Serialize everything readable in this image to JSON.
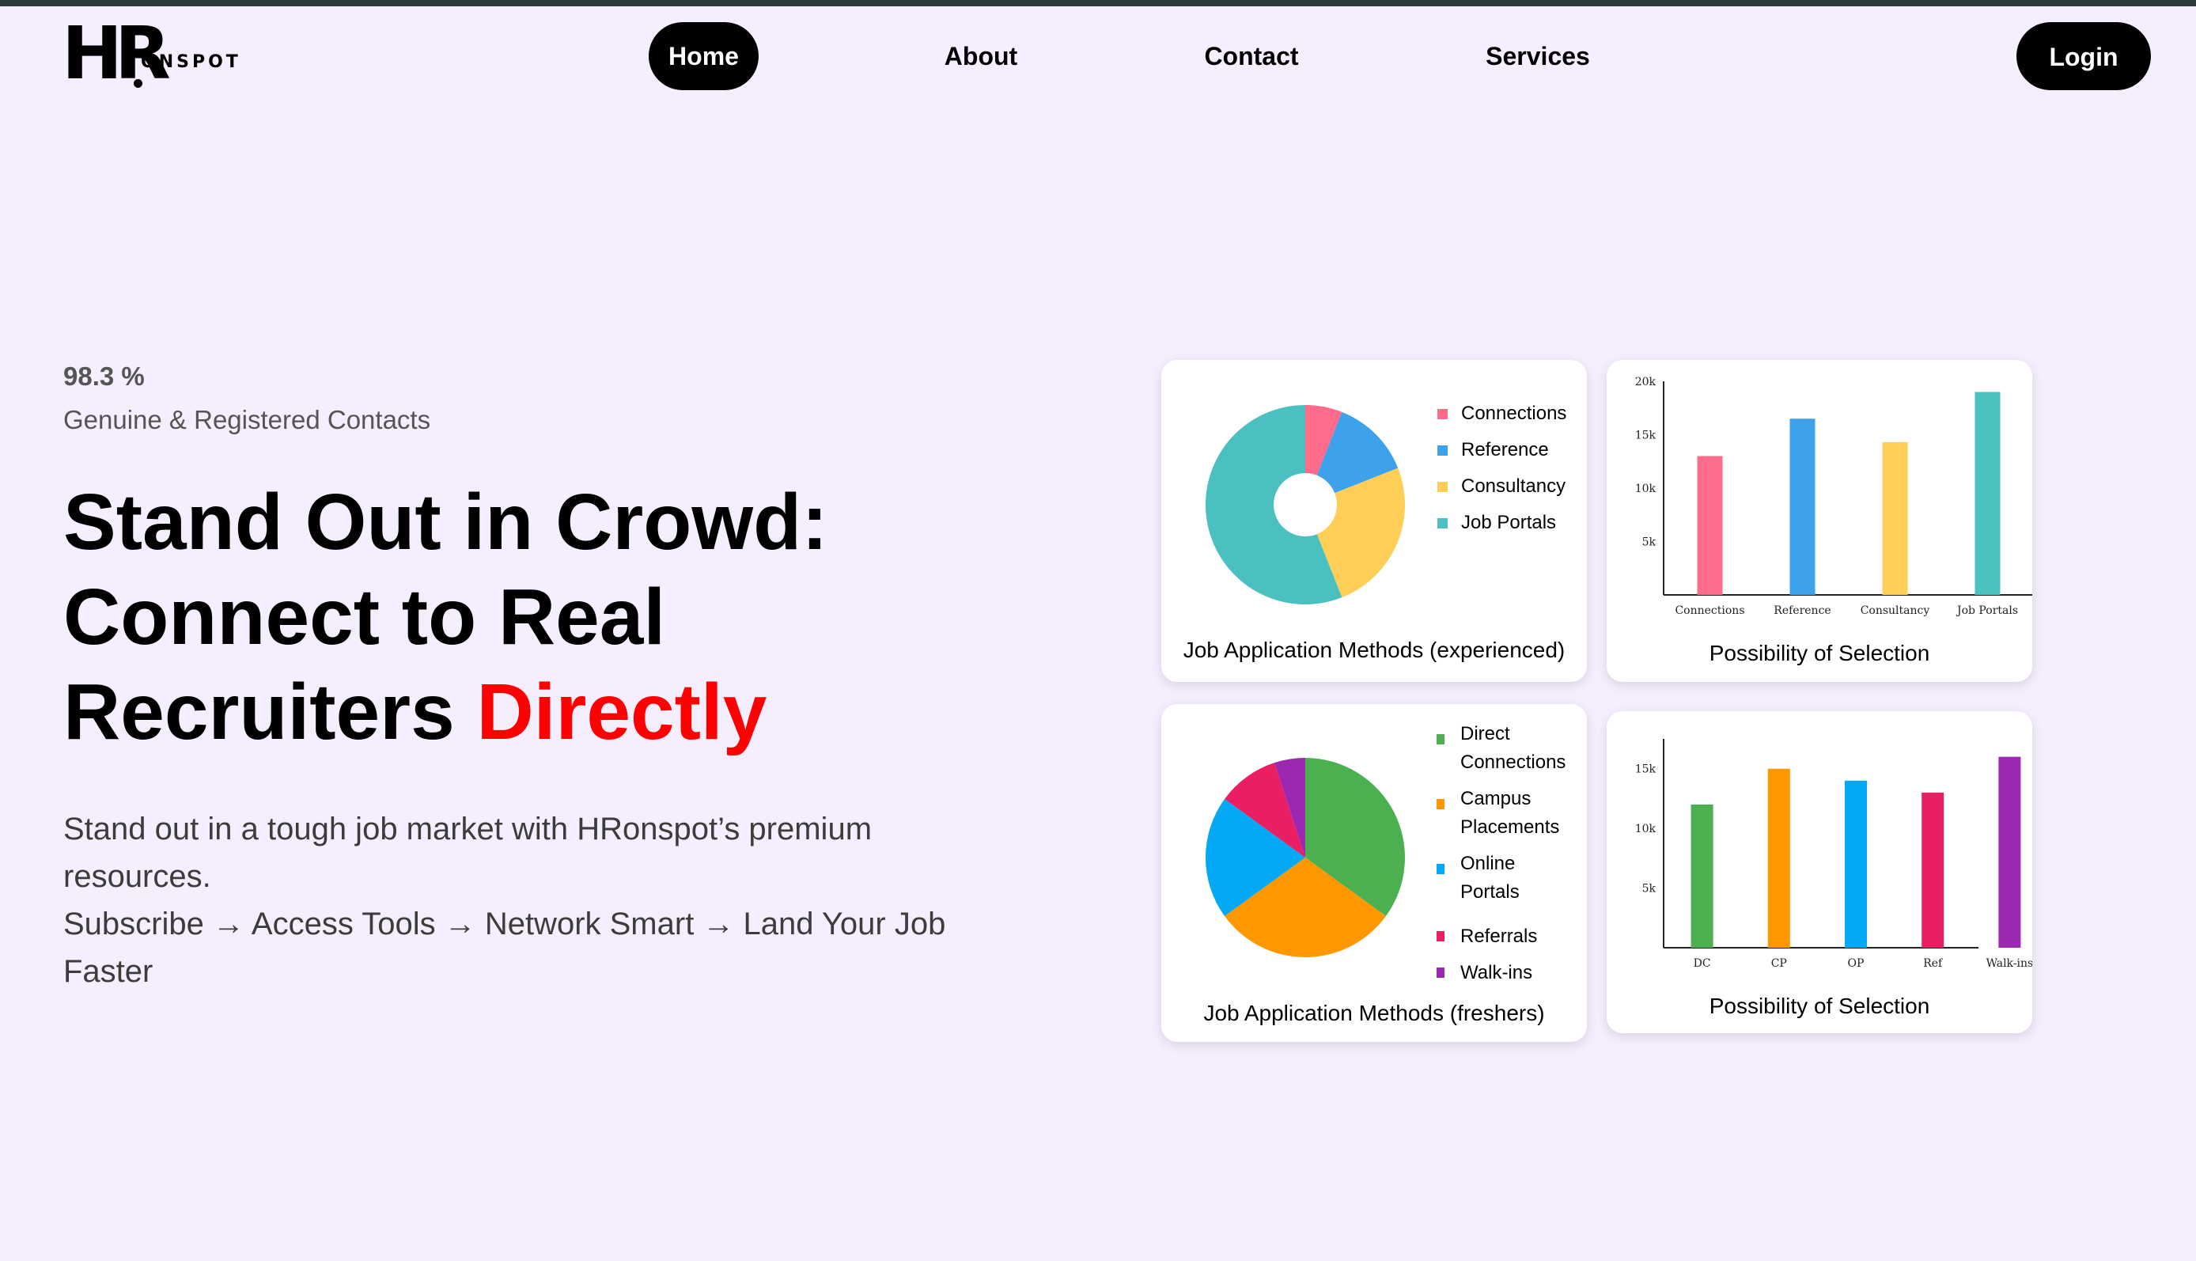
{
  "brand": {
    "logo_main": "HR",
    "logo_rest": "ONSPOT"
  },
  "nav": {
    "items": [
      {
        "label": "Home"
      },
      {
        "label": "About"
      },
      {
        "label": "Contact"
      },
      {
        "label": "Services"
      }
    ],
    "login_label": "Login"
  },
  "hero": {
    "stat_value": "98.3 %",
    "stat_label": "Genuine & Registered Contacts",
    "title_line1": "Stand Out in Crowd:",
    "title_line2": "Connect to Real",
    "title_line3a": "Recruiters ",
    "title_line3b": "Directly",
    "desc_line1": "Stand out in a tough job market with HRonspot’s premium resources.",
    "desc_line2": "Subscribe → Access Tools → Network Smart → Land Your Job Faster"
  },
  "colors": {
    "background": "#f5eefe",
    "accent": "#ff0000"
  },
  "chart_data": [
    {
      "type": "pie",
      "title": "Job Application Methods (experienced)",
      "categories": [
        "Connections",
        "Reference",
        "Consultancy",
        "Job Portals"
      ],
      "values": [
        6,
        13,
        25,
        56
      ],
      "colors": [
        "#ff6b8a",
        "#3ea1ec",
        "#ffce56",
        "#4bc0c0"
      ],
      "donut": true
    },
    {
      "type": "bar",
      "title": "Possibility of Selection",
      "categories": [
        "Connections",
        "Reference",
        "Consultancy",
        "Job Portals"
      ],
      "values": [
        13000,
        16500,
        14300,
        19000
      ],
      "colors": [
        "#ff6b8a",
        "#3ea1ec",
        "#ffce56",
        "#4bc0c0"
      ],
      "yticks": [
        "5k",
        "10k",
        "15k",
        "20k"
      ],
      "ylim": [
        0,
        20000
      ]
    },
    {
      "type": "pie",
      "title": "Job Application Methods (freshers)",
      "categories": [
        "Direct Connections",
        "Campus Placements",
        "Online Portals",
        "Referrals",
        "Walk-ins"
      ],
      "values": [
        35,
        30,
        20,
        10,
        5
      ],
      "colors": [
        "#4caf50",
        "#ff9800",
        "#03a9f4",
        "#e91e63",
        "#9c27b0"
      ],
      "donut": false
    },
    {
      "type": "bar",
      "title": "Possibility of Selection",
      "categories": [
        "DC",
        "CP",
        "OP",
        "Ref",
        "Walk-ins"
      ],
      "values": [
        12000,
        15000,
        14000,
        13000,
        16000
      ],
      "colors": [
        "#4caf50",
        "#ff9800",
        "#03a9f4",
        "#e91e63",
        "#9c27b0"
      ],
      "yticks": [
        "5k",
        "10k",
        "15k"
      ],
      "ylim": [
        0,
        17500
      ]
    }
  ]
}
